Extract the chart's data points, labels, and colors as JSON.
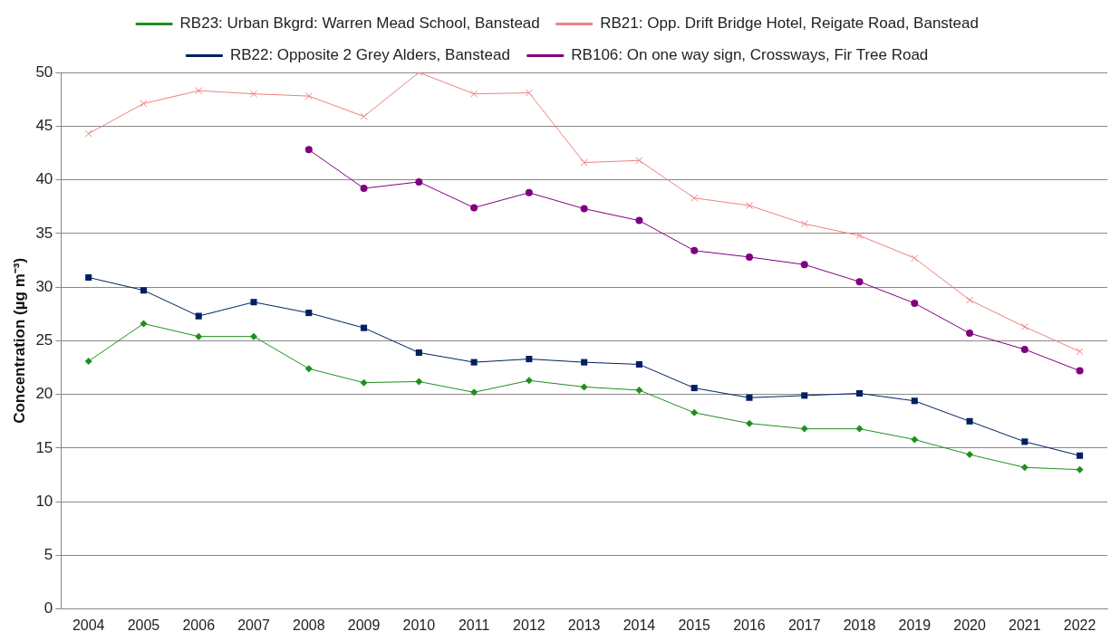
{
  "chart_data": {
    "type": "line",
    "ylabel": "Concentration (µg m⁻³)",
    "categories": [
      "2004",
      "2005",
      "2006",
      "2007",
      "2008",
      "2009",
      "2010",
      "2011",
      "2012",
      "2013",
      "2014",
      "2015",
      "2016",
      "2017",
      "2018",
      "2019",
      "2020",
      "2021",
      "2022"
    ],
    "series": [
      {
        "name": "RB23: Urban Bkgrd: Warren Mead School, Banstead",
        "color": "#1f8f1f",
        "marker": "diamond",
        "values": [
          23.1,
          26.6,
          25.4,
          25.4,
          22.4,
          21.1,
          21.2,
          20.2,
          21.3,
          20.7,
          20.4,
          18.3,
          17.3,
          16.8,
          16.8,
          15.8,
          14.4,
          13.2,
          13.0
        ]
      },
      {
        "name": "RB21: Opp. Drift Bridge Hotel, Reigate Road, Banstead",
        "color": "#ee8080",
        "marker": "cross",
        "values": [
          44.3,
          47.1,
          48.3,
          48.0,
          47.8,
          45.9,
          50.0,
          48.0,
          48.1,
          41.6,
          41.8,
          38.3,
          37.6,
          35.9,
          34.8,
          32.7,
          28.8,
          26.3,
          24.0
        ]
      },
      {
        "name": "RB22: Opposite 2 Grey Alders, Banstead",
        "color": "#002060",
        "marker": "square",
        "values": [
          30.9,
          29.7,
          27.3,
          28.6,
          27.6,
          26.2,
          23.9,
          23.0,
          23.3,
          23.0,
          22.8,
          20.6,
          19.7,
          19.9,
          20.1,
          19.4,
          17.5,
          15.6,
          14.3
        ]
      },
      {
        "name": "RB106: On one way sign, Crossways, Fir Tree Road",
        "color": "#800080",
        "marker": "circle",
        "values": [
          null,
          null,
          null,
          null,
          42.8,
          39.2,
          39.8,
          37.4,
          38.8,
          37.3,
          36.2,
          33.4,
          32.8,
          32.1,
          30.5,
          28.5,
          25.7,
          24.2,
          22.2
        ]
      }
    ],
    "ylim": [
      0,
      50
    ],
    "yticks": [
      0,
      5,
      10,
      15,
      20,
      25,
      30,
      35,
      40,
      45,
      50
    ],
    "grid": "y",
    "legend": "top",
    "line_style": "solid"
  }
}
